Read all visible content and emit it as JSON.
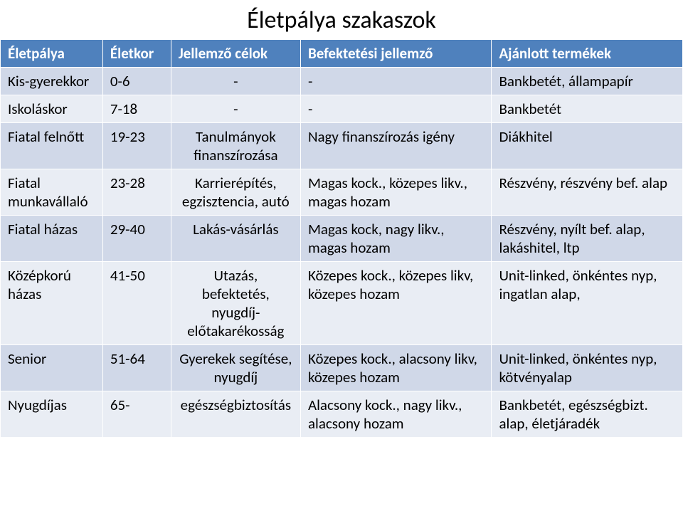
{
  "title": {
    "text": "Életpálya szakaszok",
    "fontsize": 34,
    "color": "#000000"
  },
  "table": {
    "header_bg": "#4f81bd",
    "header_color": "#ffffff",
    "row_odd_bg": "#d0d8e8",
    "row_even_bg": "#e9edf4",
    "body_fontsize": 21,
    "body_color": "#000000",
    "border_color": "#ffffff",
    "columns": [
      {
        "label": "Életpálya",
        "align": "left"
      },
      {
        "label": "Életkor",
        "align": "left"
      },
      {
        "label": "Jellemző célok",
        "align": "center"
      },
      {
        "label": "Befektetési jellemző",
        "align": "left"
      },
      {
        "label": "Ajánlott termékek",
        "align": "left"
      }
    ],
    "rows": [
      {
        "cells": [
          "Kis-gyerekkor",
          "0-6",
          "-",
          "-",
          "Bankbetét, állampapír"
        ]
      },
      {
        "cells": [
          "Iskoláskor",
          "7-18",
          "-",
          "-",
          "Bankbetét"
        ]
      },
      {
        "cells": [
          "Fiatal felnőtt",
          "19-23",
          "Tanulmányok finanszírozása",
          "Nagy finanszírozás igény",
          "Diákhitel"
        ]
      },
      {
        "cells": [
          "Fiatal munkavállaló",
          "23-28",
          "Karrierépítés, egzisztencia, autó",
          "Magas kock., közepes likv., magas hozam",
          "Részvény, részvény bef. alap"
        ]
      },
      {
        "cells": [
          "Fiatal házas",
          "29-40",
          "Lakás-vásárlás",
          "Magas kock, nagy likv., magas hozam",
          "Részvény, nyílt bef. alap, lakáshitel, ltp"
        ]
      },
      {
        "cells": [
          "Középkorú házas",
          "41-50",
          "Utazás, befektetés, nyugdíj-előtakarékosság",
          "Közepes kock., közepes likv, közepes hozam",
          "Unit-linked, önkéntes nyp, ingatlan alap,"
        ]
      },
      {
        "cells": [
          "Senior",
          "51-64",
          "Gyerekek segítése, nyugdíj",
          "Közepes kock., alacsony likv, közepes hozam",
          "Unit-linked, önkéntes nyp, kötvényalap"
        ]
      },
      {
        "cells": [
          "Nyugdíjas",
          "65-",
          "egészségbiztosítás",
          "Alacsony kock., nagy likv., alacsony hozam",
          "Bankbetét, egészségbizt. alap, életjáradék"
        ]
      }
    ]
  }
}
